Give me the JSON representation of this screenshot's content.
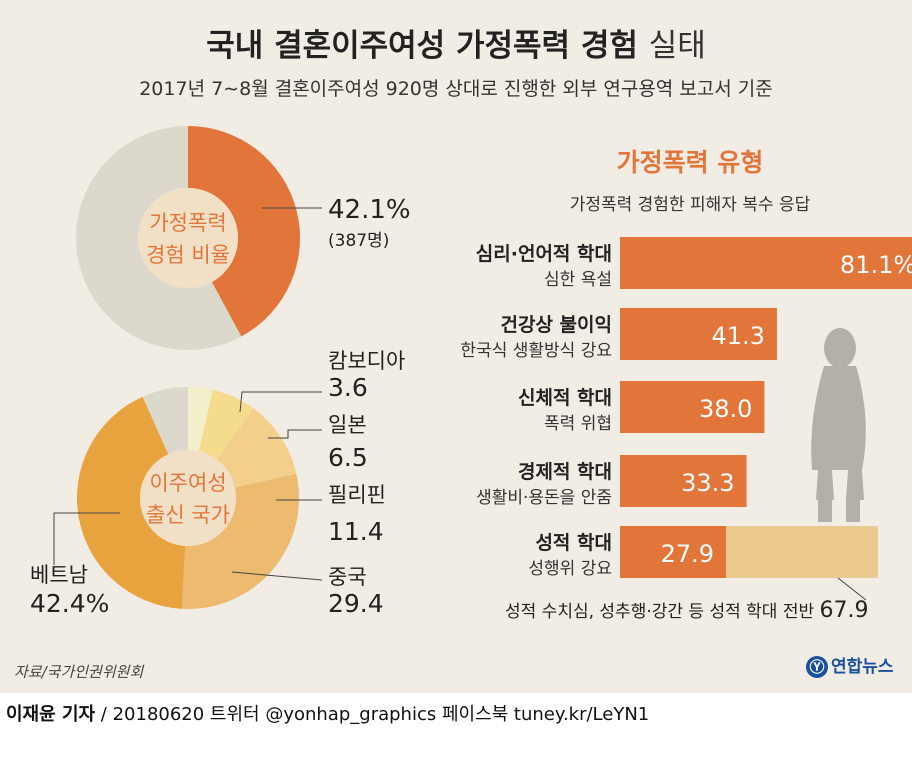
{
  "header": {
    "title_bold": "국내 결혼이주여성 가정폭력 경험",
    "title_light": "실태",
    "subtitle": "2017년 7∼8월 결혼이주여성 920명 상대로 진행한 외부 연구용역 보고서 기준"
  },
  "colors": {
    "orange": "#e2763a",
    "grey": "#dcd8cc",
    "inner": "#f2e0c6",
    "light_bar": "#ecc98f"
  },
  "chart_data": [
    {
      "type": "pie",
      "name": "experience_ratio",
      "center_label": [
        "가정폭력",
        "경험 비율"
      ],
      "slices": [
        {
          "label": "가정폭력 경험",
          "value": 42.1,
          "value_label": "42.1%",
          "count_label": "(387명)",
          "color": "#e2763a"
        },
        {
          "label": "",
          "value": 57.9,
          "color": "#dcd8cc"
        }
      ]
    },
    {
      "type": "pie",
      "name": "origin_country",
      "center_label": [
        "이주여성",
        "출신 국가"
      ],
      "slices": [
        {
          "label": "캄보디아",
          "value": 3.6,
          "value_label": "3.6",
          "color": "#f4efcb"
        },
        {
          "label": "일본",
          "value": 6.5,
          "value_label": "6.5",
          "color": "#f5db8d"
        },
        {
          "label": "필리핀",
          "value": 11.4,
          "value_label": "11.4",
          "color": "#f2cf8a"
        },
        {
          "label": "중국",
          "value": 29.4,
          "value_label": "29.4",
          "color": "#ecbb70"
        },
        {
          "label": "베트남",
          "value": 42.4,
          "value_label": "42.4%",
          "color": "#e8a23e"
        },
        {
          "label": "",
          "value": 6.7,
          "color": "#dcd8cc"
        }
      ]
    },
    {
      "type": "bar",
      "name": "violence_types",
      "title": "가정폭력 유형",
      "subtitle": "가정폭력 경험한 피해자 복수 응답",
      "xlim": [
        0,
        100
      ],
      "items": [
        {
          "main": "심리·언어적 학대",
          "sub": "심한 욕설",
          "value": 81.1,
          "value_label": "81.1%"
        },
        {
          "main": "건강상 불이익",
          "sub": "한국식 생활방식 강요",
          "value": 41.3,
          "value_label": "41.3"
        },
        {
          "main": "신체적 학대",
          "sub": "폭력 위협",
          "value": 38.0,
          "value_label": "38.0"
        },
        {
          "main": "경제적 학대",
          "sub": "생활비·용돈을 안줌",
          "value": 33.3,
          "value_label": "33.3"
        },
        {
          "main": "성적 학대",
          "sub": "성행위 강요",
          "value": 27.9,
          "value_label": "27.9",
          "overall_value": 67.9
        }
      ],
      "note": "성적 수치심, 성추행·강간 등 성적 학대 전반",
      "note_value": "67.9"
    }
  ],
  "footer": {
    "source": "자료/국가인권위원회",
    "logo": "연합뉴스",
    "logo_mark": "Ⓨ",
    "reporter": "이재윤 기자",
    "credit": " / 20180620   트위터 @yonhap_graphics  페이스북 tuney.kr/LeYN1"
  }
}
